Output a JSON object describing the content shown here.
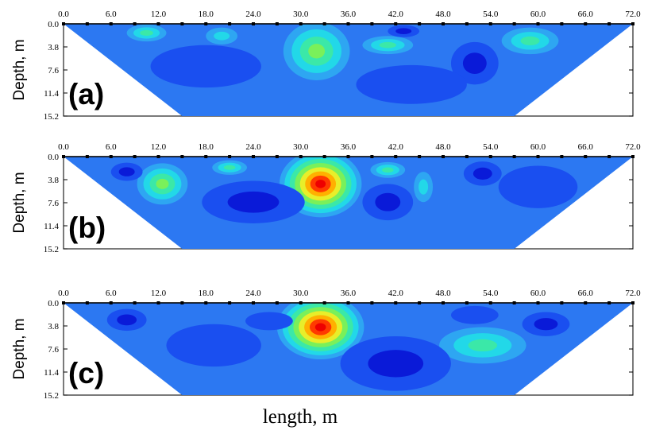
{
  "chart_data": {
    "type": "heatmap",
    "xlabel": "length, m",
    "ylabel": "Depth, m",
    "x_ticks": [
      "0.0",
      "6.0",
      "12.0",
      "18.0",
      "24.0",
      "30.0",
      "36.0",
      "42.0",
      "48.0",
      "54.0",
      "60.0",
      "66.0",
      "72.0"
    ],
    "y_ticks": [
      "0.0",
      "3.8",
      "7.6",
      "11.4",
      "15.2"
    ],
    "xlim": [
      0,
      72
    ],
    "ylim": [
      0,
      15.2
    ],
    "electrode_spacing": 3,
    "section_bottom_x_range": [
      15,
      57
    ],
    "colormap": [
      "#0a1ad8",
      "#1a4ff0",
      "#2c78f2",
      "#2ea6f2",
      "#22d8e8",
      "#3be8a8",
      "#7af05a",
      "#e8ee2a",
      "#ffb000",
      "#ff3a00",
      "#ee0000"
    ],
    "panels": [
      {
        "label": "(a)",
        "background_level": 2,
        "anomalies": [
          {
            "x": 32,
            "z": 4.5,
            "level": 6,
            "rx": 4.2,
            "rz": 4.8
          },
          {
            "x": 10.5,
            "z": 1.5,
            "level": 5,
            "rx": 2.5,
            "rz": 1.4
          },
          {
            "x": 20,
            "z": 2.0,
            "level": 4,
            "rx": 2,
            "rz": 1.4
          },
          {
            "x": 41,
            "z": 3.5,
            "level": 5,
            "rx": 3.2,
            "rz": 1.5
          },
          {
            "x": 59,
            "z": 2.8,
            "level": 5,
            "rx": 3.6,
            "rz": 2.2
          },
          {
            "x": 43,
            "z": 1.2,
            "level": 0,
            "rx": 2,
            "rz": 1.0
          },
          {
            "x": 52,
            "z": 6.5,
            "level": 0,
            "rx": 3,
            "rz": 3.5
          },
          {
            "x": 18,
            "z": 7,
            "level": 1,
            "rx": 7,
            "rz": 3.5
          },
          {
            "x": 44,
            "z": 10,
            "level": 1,
            "rx": 7,
            "rz": 3.2
          }
        ]
      },
      {
        "label": "(b)",
        "background_level": 2,
        "anomalies": [
          {
            "x": 32.5,
            "z": 4.5,
            "level": 10,
            "rx": 5.2,
            "rz": 5.5
          },
          {
            "x": 12.5,
            "z": 4.5,
            "level": 6,
            "rx": 3.2,
            "rz": 3.4
          },
          {
            "x": 21,
            "z": 1.8,
            "level": 5,
            "rx": 2.2,
            "rz": 1.2
          },
          {
            "x": 41,
            "z": 2.2,
            "level": 5,
            "rx": 2.2,
            "rz": 1.3
          },
          {
            "x": 45.5,
            "z": 5,
            "level": 4,
            "rx": 1.2,
            "rz": 2.5
          },
          {
            "x": 24,
            "z": 7.5,
            "level": 0,
            "rx": 6.5,
            "rz": 3.5
          },
          {
            "x": 41,
            "z": 7.5,
            "level": 0,
            "rx": 3.2,
            "rz": 3
          },
          {
            "x": 53,
            "z": 2.8,
            "level": 0,
            "rx": 2.4,
            "rz": 2
          },
          {
            "x": 8,
            "z": 2.5,
            "level": 0,
            "rx": 2,
            "rz": 1.5
          },
          {
            "x": 60,
            "z": 5,
            "level": 1,
            "rx": 5,
            "rz": 3.5
          }
        ]
      },
      {
        "label": "(c)",
        "background_level": 2,
        "anomalies": [
          {
            "x": 32.5,
            "z": 4.0,
            "level": 10,
            "rx": 5.5,
            "rz": 5.3
          },
          {
            "x": 53,
            "z": 7,
            "level": 5,
            "rx": 5.5,
            "rz": 3
          },
          {
            "x": 61,
            "z": 3.5,
            "level": 0,
            "rx": 3,
            "rz": 2
          },
          {
            "x": 8,
            "z": 2.8,
            "level": 0,
            "rx": 2.5,
            "rz": 1.8
          },
          {
            "x": 52,
            "z": 2.0,
            "level": 1,
            "rx": 3,
            "rz": 1.5
          },
          {
            "x": 42,
            "z": 10,
            "level": 0,
            "rx": 7,
            "rz": 4.5
          },
          {
            "x": 19,
            "z": 7,
            "level": 1,
            "rx": 6,
            "rz": 3.5
          },
          {
            "x": 26,
            "z": 3,
            "level": 1,
            "rx": 3,
            "rz": 1.5
          }
        ]
      }
    ]
  }
}
